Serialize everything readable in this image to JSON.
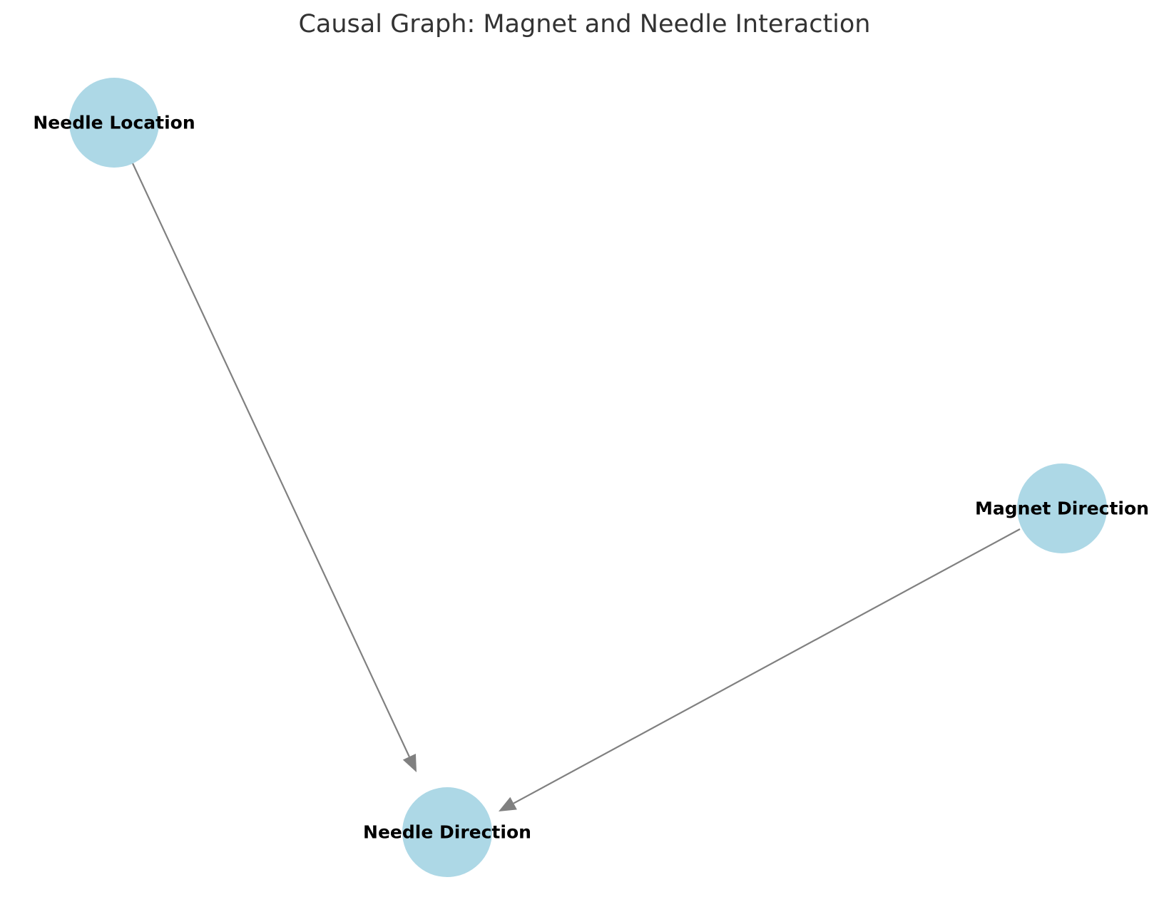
{
  "diagram": {
    "title": "Causal Graph: Magnet and Needle Interaction",
    "node_color": "#add8e6",
    "edge_color": "#808080",
    "label_color": "#000000",
    "title_color": "#333333",
    "nodes": [
      {
        "id": "needle_location",
        "label": "Needle Location"
      },
      {
        "id": "magnet_direction",
        "label": "Magnet Direction"
      },
      {
        "id": "needle_direction",
        "label": "Needle Direction"
      }
    ],
    "edges": [
      {
        "from": "needle_location",
        "to": "needle_direction"
      },
      {
        "from": "magnet_direction",
        "to": "needle_direction"
      }
    ]
  }
}
